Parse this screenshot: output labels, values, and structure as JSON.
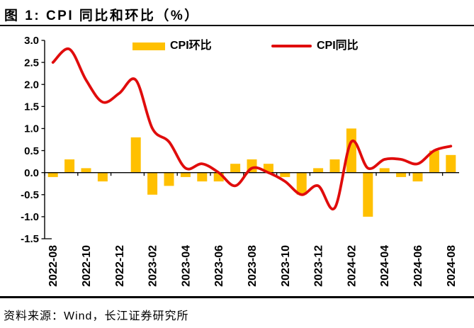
{
  "figure": {
    "title": "图 1: CPI 同比和环比（%）",
    "source": "资料来源：Wind，长江证券研究所"
  },
  "colors": {
    "bar": "#FFC000",
    "line": "#E00C0C",
    "axis": "#000000",
    "text": "#000000",
    "rule": "#000000"
  },
  "chart_data": {
    "type": "combo-bar-line",
    "title": "图 1: CPI 同比和环比（%）",
    "categories": [
      "2022-08",
      "2022-09",
      "2022-10",
      "2022-11",
      "2022-12",
      "2023-01",
      "2023-02",
      "2023-03",
      "2023-04",
      "2023-05",
      "2023-06",
      "2023-07",
      "2023-08",
      "2023-09",
      "2023-10",
      "2023-11",
      "2023-12",
      "2024-01",
      "2024-02",
      "2024-03",
      "2024-04",
      "2024-05",
      "2024-06",
      "2024-07",
      "2024-08"
    ],
    "series": [
      {
        "name": "CPI环比",
        "type": "bar",
        "color": "#FFC000",
        "values": [
          -0.1,
          0.3,
          0.1,
          -0.2,
          0.0,
          0.8,
          -0.5,
          -0.3,
          -0.1,
          -0.2,
          -0.2,
          0.2,
          0.3,
          0.2,
          -0.1,
          -0.5,
          0.1,
          0.3,
          1.0,
          -1.0,
          0.1,
          -0.1,
          -0.2,
          0.5,
          0.4
        ]
      },
      {
        "name": "CPI同比",
        "type": "line",
        "smooth": true,
        "color": "#E00C0C",
        "values": [
          2.5,
          2.8,
          2.1,
          1.6,
          1.8,
          2.1,
          1.0,
          0.7,
          0.1,
          0.2,
          0.0,
          -0.3,
          0.1,
          0.0,
          -0.2,
          -0.5,
          -0.3,
          -0.8,
          0.7,
          0.1,
          0.3,
          0.3,
          0.2,
          0.5,
          0.6
        ]
      }
    ],
    "ylim": [
      -1.5,
      3.0
    ],
    "ytick_step": 0.5,
    "ytick_labels": [
      "3.0",
      "2.5",
      "2.0",
      "1.5",
      "1.0",
      "0.5",
      "0.0",
      "-0.5",
      "-1.0",
      "-1.5"
    ],
    "xtick_label_every": 2,
    "xtick_labels": [
      "2022-08",
      "2022-10",
      "2022-12",
      "2023-02",
      "2023-04",
      "2023-06",
      "2023-08",
      "2023-10",
      "2023-12",
      "2024-02",
      "2024-04",
      "2024-06",
      "2024-08"
    ],
    "legend_position": "top-center",
    "grid": false,
    "xlabel": "",
    "ylabel": ""
  }
}
